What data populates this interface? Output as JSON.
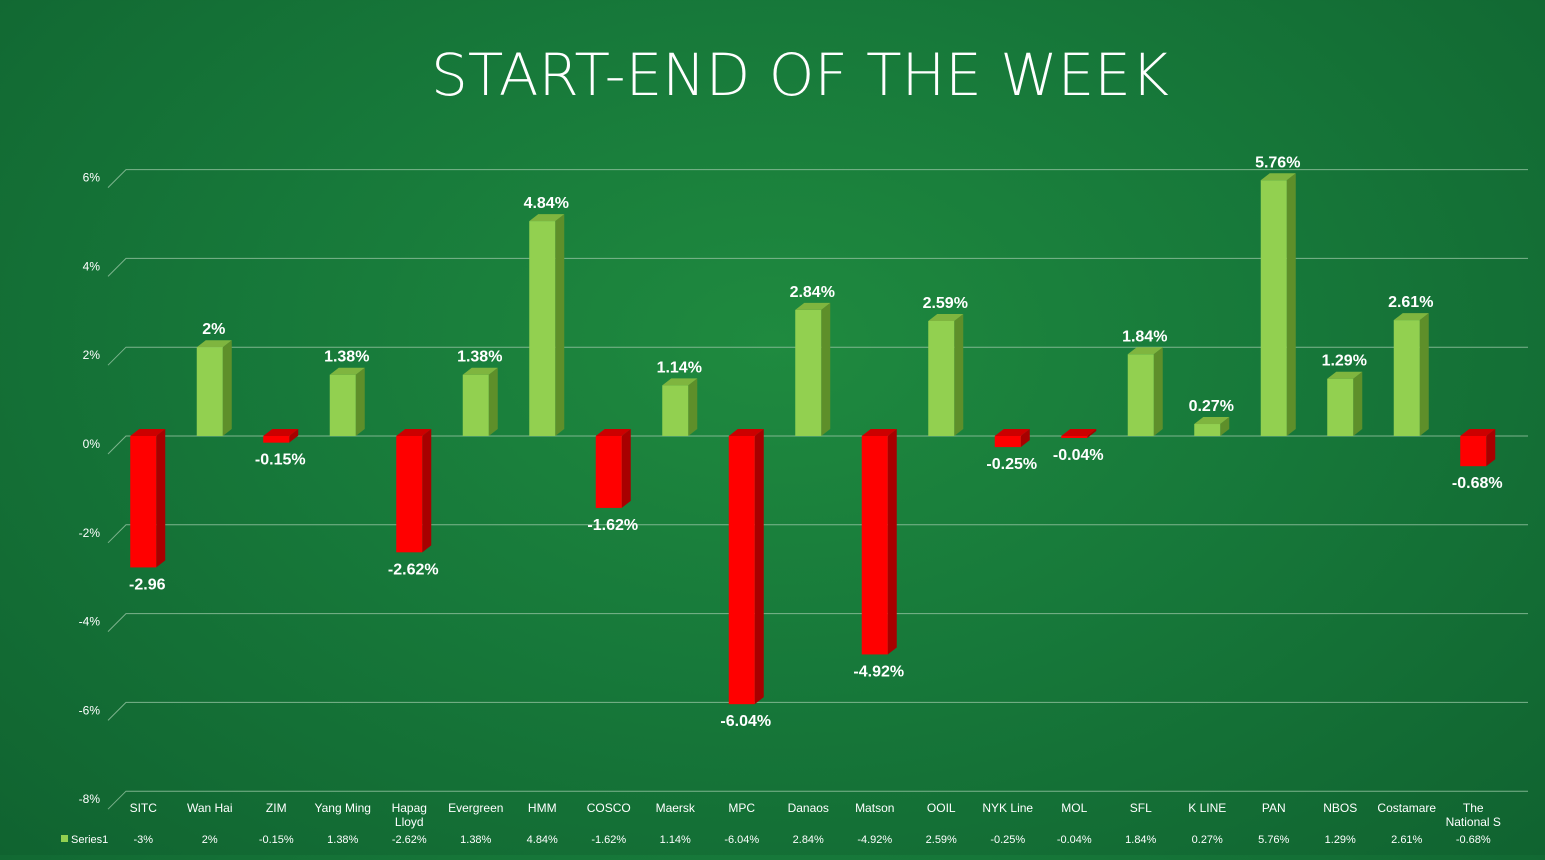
{
  "chart_data": {
    "type": "bar",
    "title": "START-END OF THE WEEK",
    "categories": [
      "SITC",
      "Wan Hai",
      "ZIM",
      "Yang Ming",
      "Hapag Lloyd",
      "Evergreen",
      "HMM",
      "COSCO",
      "Maersk",
      "MPC",
      "Danaos",
      "Matson",
      "OOIL",
      "NYK Line",
      "MOL",
      "SFL",
      "K LINE",
      "PAN",
      "NBOS",
      "Costamare",
      "The National S"
    ],
    "series": [
      {
        "name": "Series1",
        "values": [
          -2.96,
          2,
          -0.15,
          1.38,
          -2.62,
          1.38,
          4.84,
          -1.62,
          1.14,
          -6.04,
          2.84,
          -4.92,
          2.59,
          -0.25,
          -0.04,
          1.84,
          0.27,
          5.76,
          1.29,
          2.61,
          -0.68
        ]
      }
    ],
    "data_labels": [
      "-2.96",
      "2%",
      "-0.15%",
      "1.38%",
      "-2.62%",
      "1.38%",
      "4.84%",
      "-1.62%",
      "1.14%",
      "-6.04%",
      "2.84%",
      "-4.92%",
      "2.59%",
      "-0.25%",
      "-0.04%",
      "1.84%",
      "0.27%",
      "5.76%",
      "1.29%",
      "2.61%",
      "-0.68%"
    ],
    "table_values": [
      "-3%",
      "2%",
      "-0.15%",
      "1.38%",
      "-2.62%",
      "1.38%",
      "4.84%",
      "-1.62%",
      "1.14%",
      "-6.04%",
      "2.84%",
      "-4.92%",
      "2.59%",
      "-0.25%",
      "-0.04%",
      "1.84%",
      "0.27%",
      "5.76%",
      "1.29%",
      "2.61%",
      "-0.68%"
    ],
    "y_ticks": [
      6,
      4,
      2,
      0,
      -2,
      -4,
      -6,
      -8
    ],
    "y_tick_labels": [
      "6%",
      "4%",
      "2%",
      "0%",
      "-2%",
      "-4%",
      "-6%",
      "-8%"
    ],
    "ylim": [
      -8,
      6.5
    ],
    "grid": true,
    "legend": "data-table",
    "colors": {
      "positive": "#92d050",
      "positive_side": "#5e8f2a",
      "positive_top": "#7fb53f",
      "negative": "#ff0000",
      "negative_side": "#a80000",
      "negative_top": "#cc0000",
      "gridline": "#8fbf9c",
      "text": "#ffffff"
    }
  }
}
